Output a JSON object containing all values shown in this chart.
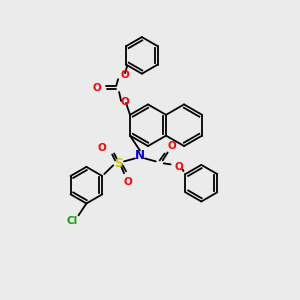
{
  "background_color": "#ebebeb",
  "bond_color": "#000000",
  "atom_colors": {
    "O": "#ff0000",
    "N": "#0000cc",
    "S": "#cccc00",
    "Cl": "#00aa00",
    "C": "#000000"
  },
  "figsize": [
    3.0,
    3.0
  ],
  "dpi": 100
}
